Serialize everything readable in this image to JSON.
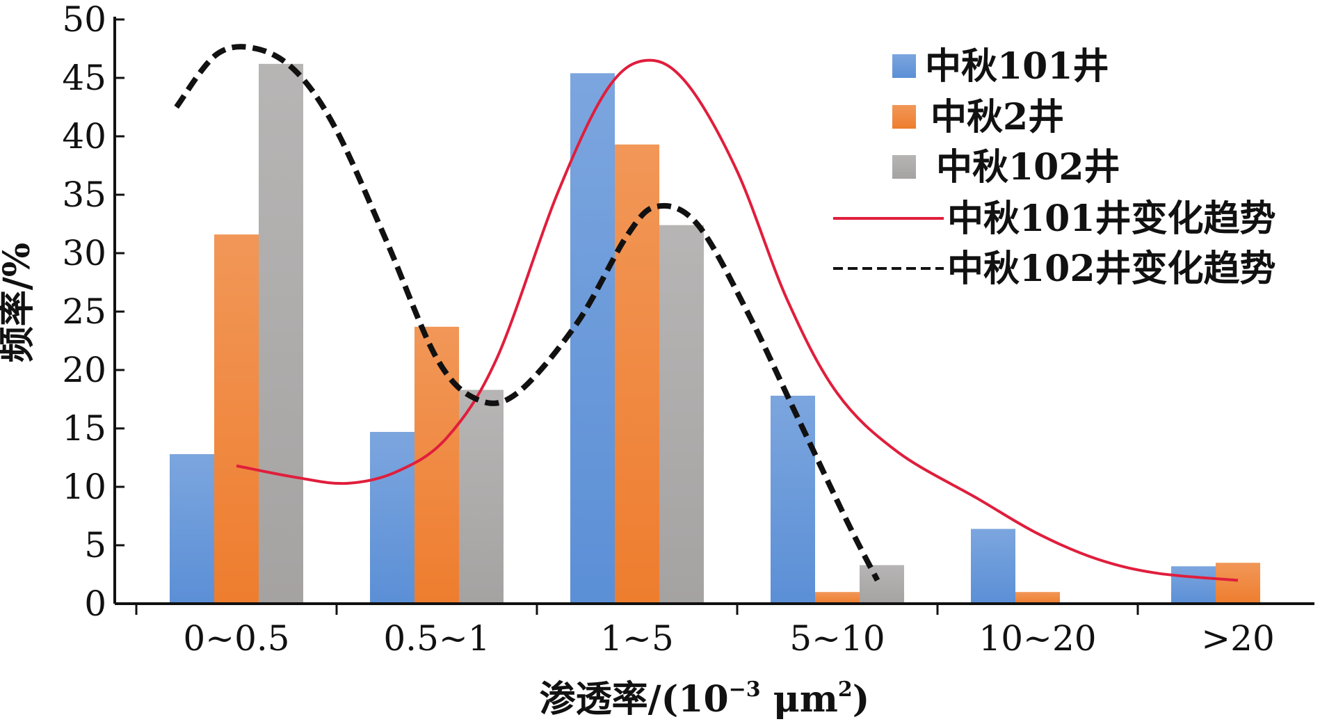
{
  "chart_data": {
    "type": "bar",
    "categories": [
      "0~0.5",
      "0.5~1",
      "1~5",
      "5~10",
      "10~20",
      ">20"
    ],
    "series": [
      {
        "name": "中秋101井",
        "type": "bar",
        "color": "#5b8fd6",
        "values": [
          12.8,
          14.7,
          45.4,
          17.8,
          6.4,
          3.2
        ]
      },
      {
        "name": "中秋2井",
        "type": "bar",
        "color": "#ee7d2e",
        "values": [
          31.6,
          23.7,
          39.3,
          1.0,
          1.0,
          3.5
        ]
      },
      {
        "name": "中秋102井",
        "type": "bar",
        "color": "#a5a2a2",
        "values": [
          46.2,
          18.3,
          32.4,
          3.3,
          0,
          0
        ]
      },
      {
        "name": "中秋101井变化趋势",
        "type": "line",
        "style": "solid",
        "color": "#e01e3c",
        "x": [
          0.0,
          0.3,
          0.55,
          0.8,
          1.05,
          1.3,
          1.6,
          1.85,
          2.05,
          2.25,
          2.5,
          2.75,
          3.0,
          3.3,
          3.7,
          4.0,
          4.3,
          4.6,
          5.0
        ],
        "y": [
          11.8,
          10.8,
          10.3,
          11.3,
          14.2,
          21.0,
          35.0,
          44.0,
          46.5,
          44.5,
          37.0,
          26.0,
          18.0,
          13.0,
          9.0,
          6.0,
          3.8,
          2.6,
          2.0
        ]
      },
      {
        "name": "中秋102井变化趋势",
        "type": "line",
        "style": "dashed",
        "color": "#111111",
        "x": [
          -0.3,
          -0.1,
          0.1,
          0.3,
          0.5,
          0.75,
          1.0,
          1.2,
          1.4,
          1.7,
          1.95,
          2.1,
          2.3,
          2.55,
          2.8,
          3.05,
          3.2
        ],
        "y": [
          42.5,
          47.0,
          47.5,
          45.5,
          40.5,
          31.0,
          21.0,
          17.5,
          18.0,
          24.0,
          31.5,
          34.0,
          32.5,
          25.0,
          16.0,
          7.0,
          2.0
        ]
      }
    ],
    "ylim": [
      0,
      50
    ],
    "yticks": [
      0,
      5,
      10,
      15,
      20,
      25,
      30,
      35,
      40,
      45,
      50
    ],
    "ylabel": "频率/%",
    "xlabel_main": "渗透率/(10",
    "xlabel_exp1": "−3",
    "xlabel_unit": " μm",
    "xlabel_exp2": "2",
    "xlabel_close": ")",
    "legend_position": "top-right",
    "grid": false
  }
}
